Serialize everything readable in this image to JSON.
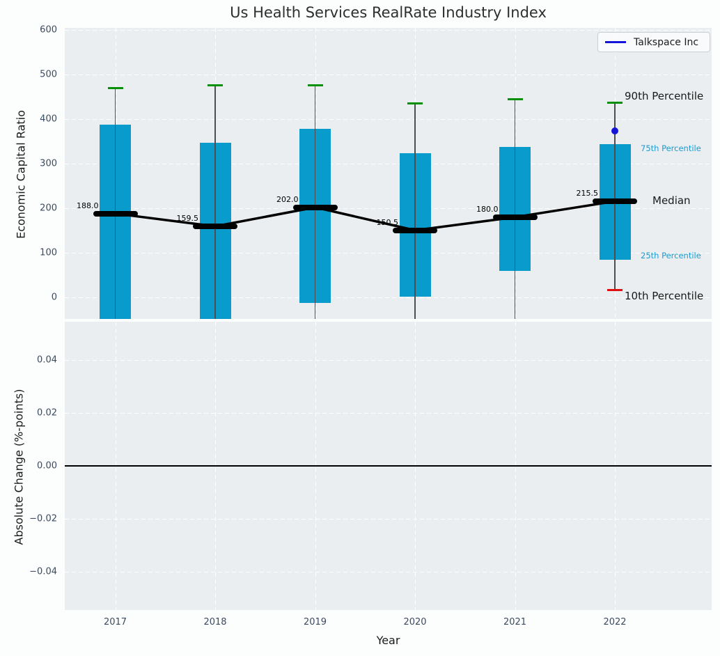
{
  "figure": {
    "title": "Us Health Services RealRate Industry Index",
    "legend": {
      "label": "Talkspace Inc"
    },
    "colors": {
      "bar": "#0a9bcd",
      "median_line": "#000000",
      "p90_cap": "#089008",
      "p10_cap": "#e01010",
      "talkspace": "#1414d8",
      "panel_bg": "#eaeef0",
      "tick_text": "#3b4a60",
      "percentile_label": "#1b9bd0",
      "major_label": "#1a1a1a"
    }
  },
  "chart_data": [
    {
      "type": "bar",
      "subtype": "percentile-box",
      "title": "Us Health Services RealRate Industry Index",
      "xlabel": "Year",
      "ylabel": "Economic Capital Ratio",
      "categories": [
        "2017",
        "2018",
        "2019",
        "2020",
        "2021",
        "2022"
      ],
      "yticks": [
        0,
        100,
        200,
        300,
        400,
        500,
        600
      ],
      "ylim": [
        -48,
        604
      ],
      "grid": true,
      "legend": [
        "Talkspace Inc"
      ],
      "legend_position": "upper right",
      "series": [
        {
          "name": "90th Percentile",
          "values": [
            469,
            476,
            476,
            434,
            444,
            436
          ]
        },
        {
          "name": "75th Percentile",
          "values": [
            387,
            346,
            378,
            323,
            338,
            344
          ]
        },
        {
          "name": "Median",
          "values": [
            188.0,
            159.5,
            202.0,
            150.5,
            180.0,
            215.5
          ]
        },
        {
          "name": "25th Percentile",
          "values": [
            null,
            null,
            -12,
            2,
            60,
            84
          ]
        },
        {
          "name": "10th Percentile",
          "values": [
            null,
            null,
            null,
            null,
            null,
            16
          ]
        },
        {
          "name": "Talkspace Inc",
          "values": [
            null,
            null,
            null,
            null,
            null,
            373
          ]
        }
      ],
      "median_labels": [
        "188.0",
        "159.5",
        "202.0",
        "150.5",
        "180.0",
        "215.5"
      ],
      "right_annotations": [
        "90th Percentile",
        "75th Percentile",
        "Median",
        "25th Percentile",
        "10th Percentile"
      ]
    },
    {
      "type": "line",
      "xlabel": "Year",
      "ylabel": "Absolute Change (%-points)",
      "categories": [
        "2017",
        "2018",
        "2019",
        "2020",
        "2021",
        "2022"
      ],
      "yticks": [
        0.04,
        0.02,
        0.0,
        -0.02,
        -0.04
      ],
      "ytick_labels": [
        "0.04",
        "0.02",
        "0.00",
        "−0.02",
        "−0.04"
      ],
      "ylim": [
        -0.0545,
        0.0545
      ],
      "zero_line": true,
      "grid": true,
      "series": []
    }
  ]
}
